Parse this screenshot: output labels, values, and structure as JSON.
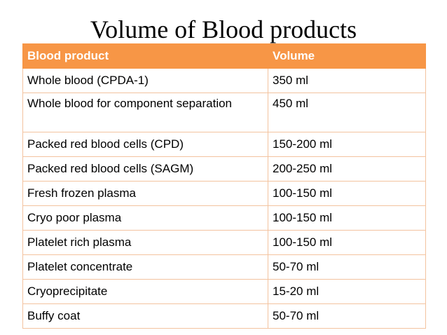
{
  "title": "Volume of Blood products",
  "table": {
    "headers": [
      "Blood product",
      "Volume"
    ],
    "rows": [
      [
        "Whole blood (CPDA-1)",
        "350 ml"
      ],
      [
        "Whole blood for component separation",
        "450 ml"
      ],
      [
        "Packed red blood cells (CPD)",
        "150-200 ml"
      ],
      [
        "Packed red blood cells (SAGM)",
        "200-250 ml"
      ],
      [
        "Fresh frozen plasma",
        "100-150 ml"
      ],
      [
        "Cryo poor plasma",
        "100-150 ml"
      ],
      [
        "Platelet rich plasma",
        "100-150 ml"
      ],
      [
        "Platelet concentrate",
        "50-70 ml"
      ],
      [
        "Cryoprecipitate",
        "15-20 ml"
      ],
      [
        "Buffy coat",
        "50-70 ml"
      ]
    ]
  },
  "colors": {
    "header_bg": "#f79646",
    "header_text": "#ffffff",
    "cell_border": "#f3c39f"
  }
}
